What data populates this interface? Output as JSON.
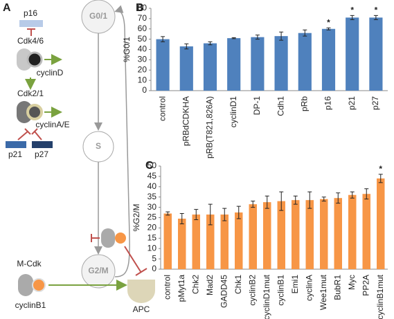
{
  "diagram": {
    "panel": "A",
    "p16": "p16",
    "cdk46": "Cdk4/6",
    "cyclinD": "cyclinD",
    "cdk21": "Cdk2/1",
    "cyclinAE": "cyclinA/E",
    "p21": "p21",
    "p27": "p27",
    "g01": "G0/1",
    "s": "S",
    "g2m": "G2/M",
    "mcdk": "M-Cdk",
    "cyclinB1": "cyclinB1",
    "apc": "APC"
  },
  "chart_data": [
    {
      "type": "bar",
      "panel": "B",
      "ylabel": "%G0/1",
      "categories": [
        "control",
        "pRBdCDKHA",
        "pRB(T821,826A)",
        "cyclinD1",
        "DP-1",
        "Cdh1",
        "pRb",
        "p16",
        "p21",
        "p27"
      ],
      "values": [
        50,
        43,
        46,
        51,
        52,
        53,
        56,
        60,
        71,
        71
      ],
      "errors": [
        2.5,
        2.5,
        1.5,
        0.5,
        2,
        4,
        3,
        1,
        2,
        2
      ],
      "significant": [
        false,
        false,
        false,
        false,
        false,
        false,
        false,
        true,
        true,
        true
      ],
      "significance_label": "*",
      "color": "#4f81bd",
      "ylim": [
        0,
        80
      ],
      "yticks": [
        0,
        10,
        20,
        30,
        40,
        50,
        60,
        70,
        80
      ]
    },
    {
      "type": "bar",
      "panel": "C",
      "ylabel": "%G2/M",
      "categories": [
        "control",
        "pMyt1a",
        "Chk2",
        "Mad2",
        "GADD45",
        "Chk1",
        "cyclinB2",
        "cyclinD1mut",
        "cyclinB1",
        "Emi1",
        "cyclinA",
        "Wee1mut",
        "BubR1",
        "Myc",
        "PP2A",
        "cyclinB1mut"
      ],
      "values": [
        27,
        24.5,
        26.5,
        26.5,
        26.5,
        27.5,
        31.5,
        32.5,
        33,
        33.5,
        33.5,
        34,
        34.5,
        36,
        36.5,
        44
      ],
      "errors": [
        0.8,
        2.5,
        2.5,
        5,
        3,
        3,
        1.5,
        3,
        4.5,
        2,
        4,
        1,
        2.5,
        1.5,
        2.5,
        2
      ],
      "significant": [
        false,
        false,
        false,
        false,
        false,
        false,
        false,
        false,
        false,
        false,
        false,
        false,
        false,
        false,
        false,
        true
      ],
      "significance_label": "*",
      "color": "#f79646",
      "ylim": [
        0,
        50
      ],
      "yticks": [
        0,
        5,
        10,
        15,
        20,
        25,
        30,
        35,
        40,
        45,
        50
      ]
    }
  ]
}
